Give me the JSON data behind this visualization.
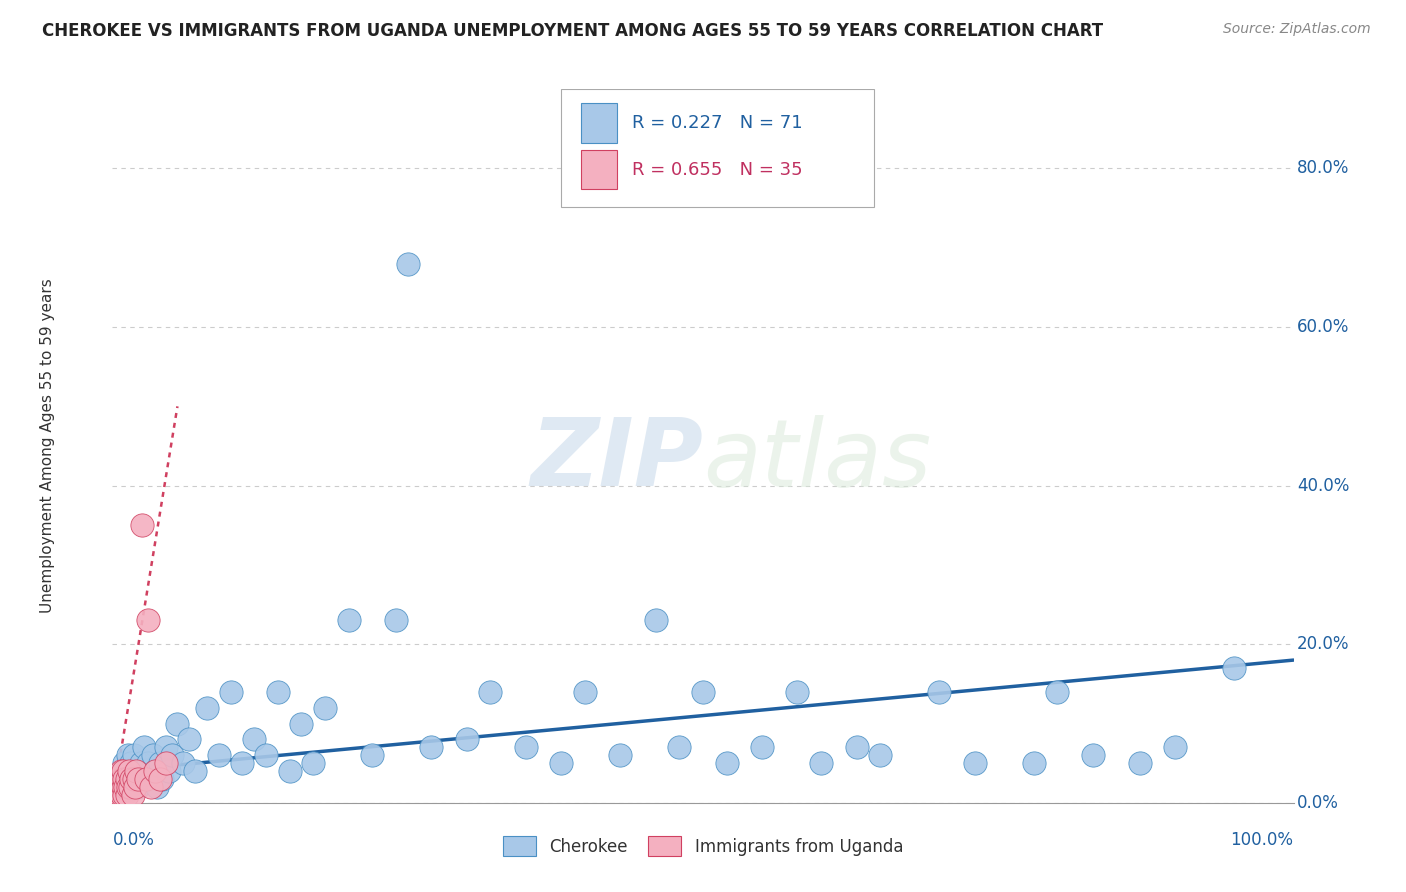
{
  "title": "CHEROKEE VS IMMIGRANTS FROM UGANDA UNEMPLOYMENT AMONG AGES 55 TO 59 YEARS CORRELATION CHART",
  "source": "Source: ZipAtlas.com",
  "ylabel": "Unemployment Among Ages 55 to 59 years",
  "watermark": "ZIPatlas",
  "legend1_label": "Cherokee",
  "legend2_label": "Immigrants from Uganda",
  "r1": "0.227",
  "n1": "71",
  "r2": "0.655",
  "n2": "35",
  "ytick_labels": [
    "0.0%",
    "20.0%",
    "40.0%",
    "60.0%",
    "80.0%"
  ],
  "ytick_vals": [
    0.0,
    0.2,
    0.4,
    0.6,
    0.8
  ],
  "xlim": [
    0.0,
    1.0
  ],
  "ylim": [
    0.0,
    0.9
  ],
  "blue_color": "#A8C8E8",
  "blue_edge": "#4A90C4",
  "pink_color": "#F4B0C0",
  "pink_edge": "#D04060",
  "trend_blue": "#2060A0",
  "trend_pink": "#C03060",
  "grid_color": "#CCCCCC",
  "blue_x": [
    0.006,
    0.008,
    0.009,
    0.01,
    0.01,
    0.012,
    0.013,
    0.015,
    0.015,
    0.016,
    0.018,
    0.018,
    0.02,
    0.022,
    0.024,
    0.025,
    0.027,
    0.028,
    0.03,
    0.032,
    0.034,
    0.036,
    0.038,
    0.04,
    0.042,
    0.045,
    0.048,
    0.05,
    0.055,
    0.06,
    0.065,
    0.07,
    0.08,
    0.09,
    0.1,
    0.11,
    0.12,
    0.13,
    0.14,
    0.15,
    0.16,
    0.17,
    0.18,
    0.2,
    0.22,
    0.24,
    0.25,
    0.27,
    0.3,
    0.32,
    0.35,
    0.38,
    0.4,
    0.43,
    0.46,
    0.48,
    0.5,
    0.52,
    0.55,
    0.58,
    0.6,
    0.63,
    0.65,
    0.7,
    0.73,
    0.78,
    0.8,
    0.83,
    0.87,
    0.9,
    0.95
  ],
  "blue_y": [
    0.03,
    0.04,
    0.02,
    0.05,
    0.03,
    0.04,
    0.06,
    0.02,
    0.04,
    0.05,
    0.03,
    0.06,
    0.04,
    0.02,
    0.05,
    0.03,
    0.07,
    0.04,
    0.05,
    0.03,
    0.06,
    0.04,
    0.02,
    0.05,
    0.03,
    0.07,
    0.04,
    0.06,
    0.1,
    0.05,
    0.08,
    0.04,
    0.12,
    0.06,
    0.14,
    0.05,
    0.08,
    0.06,
    0.14,
    0.04,
    0.1,
    0.05,
    0.12,
    0.23,
    0.06,
    0.23,
    0.68,
    0.07,
    0.08,
    0.14,
    0.07,
    0.05,
    0.14,
    0.06,
    0.23,
    0.07,
    0.14,
    0.05,
    0.07,
    0.14,
    0.05,
    0.07,
    0.06,
    0.14,
    0.05,
    0.05,
    0.14,
    0.06,
    0.05,
    0.07,
    0.17
  ],
  "pink_x": [
    0.002,
    0.003,
    0.004,
    0.004,
    0.005,
    0.005,
    0.006,
    0.006,
    0.007,
    0.007,
    0.008,
    0.008,
    0.009,
    0.009,
    0.01,
    0.01,
    0.011,
    0.012,
    0.012,
    0.013,
    0.014,
    0.015,
    0.016,
    0.017,
    0.018,
    0.019,
    0.02,
    0.022,
    0.025,
    0.028,
    0.03,
    0.033,
    0.036,
    0.04,
    0.045
  ],
  "pink_y": [
    0.01,
    0.02,
    0.01,
    0.03,
    0.01,
    0.02,
    0.01,
    0.03,
    0.02,
    0.04,
    0.01,
    0.03,
    0.02,
    0.04,
    0.01,
    0.03,
    0.02,
    0.01,
    0.03,
    0.02,
    0.04,
    0.02,
    0.03,
    0.01,
    0.03,
    0.02,
    0.04,
    0.03,
    0.35,
    0.03,
    0.23,
    0.02,
    0.04,
    0.03,
    0.05
  ],
  "blue_trend_x": [
    0.0,
    1.0
  ],
  "blue_trend_y": [
    0.04,
    0.18
  ],
  "pink_trend_x": [
    0.0,
    0.055
  ],
  "pink_trend_y": [
    0.0,
    0.5
  ]
}
